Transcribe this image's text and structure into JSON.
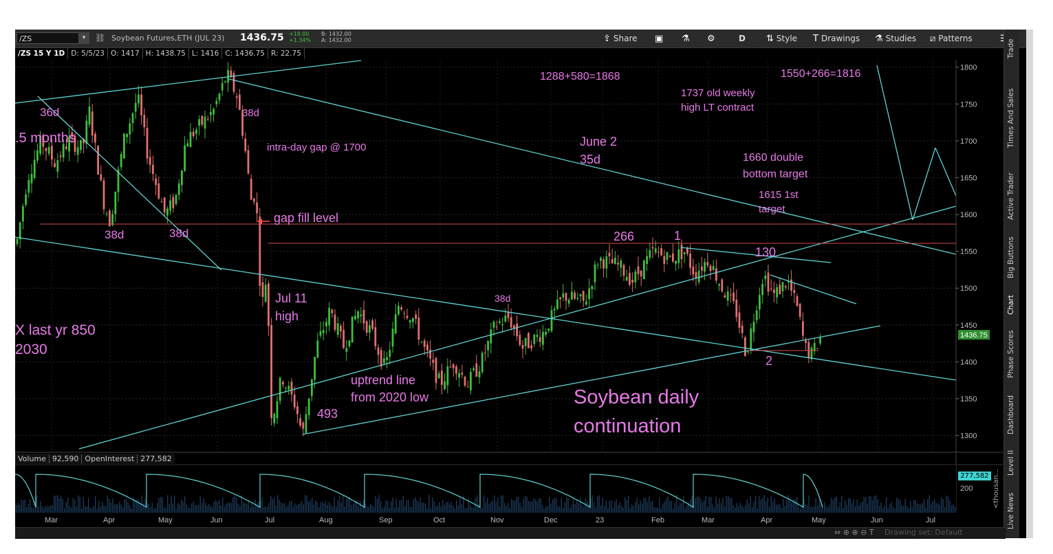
{
  "toolbar": {
    "symbol": "/ZS",
    "description": "Soybean Futures,ETH (JUL 23)",
    "last": "1436.75",
    "change": "+19.00",
    "change_pct": "+1.34%",
    "bid": "B: 1432.00",
    "ask": "A: 1432.00",
    "share": "Share",
    "period": "D",
    "style": "Style",
    "drawings": "Drawings",
    "studies": "Studies",
    "patterns": "Patterns"
  },
  "infobar": {
    "title": "/ZS 15 Y 1D",
    "date": "D: 5/5/23",
    "open": "O: 1417",
    "high": "H: 1438.75",
    "low": "L: 1416",
    "close": "C: 1436.75",
    "range": "R: 22.75"
  },
  "side_tabs": [
    "Trade",
    "Times And Sales",
    "Active Trader",
    "Big Buttons",
    "Chart",
    "Phase Scores",
    "Dashboard",
    "Level II",
    "Live News"
  ],
  "volume_bar": {
    "label": "Volume",
    "value": "92,590",
    "oi_label": "OpenInterest",
    "oi_value": "277,582",
    "oi_tag": "277,582",
    "axis_unit": "<thousan..."
  },
  "bottom": {
    "drawing_set": "Drawing set: Default"
  },
  "colors": {
    "up": "#3fbf3f",
    "down": "#e07070",
    "trendline": "#5fd3d3",
    "annotation": "#e77ae7",
    "hline": "#d94c4c"
  },
  "chart_data": {
    "type": "candlestick",
    "ylim": [
      1280,
      1810
    ],
    "y_ticks": [
      1300,
      1350,
      1400,
      1450,
      1500,
      1550,
      1600,
      1650,
      1700,
      1750,
      1800
    ],
    "x_labels": [
      "Mar",
      "Apr",
      "May",
      "Jun",
      "Jul",
      "Aug",
      "Sep",
      "Oct",
      "Nov",
      "Dec",
      "23",
      "Feb",
      "Mar",
      "Apr",
      "May",
      "Jun",
      "Jul"
    ],
    "last_price_tag": "1436.75",
    "oi_ticks": [
      "200"
    ],
    "annotations": [
      "36d",
      ".5 months",
      "38d",
      "38d",
      "38d",
      "intra-day gap @ 1700",
      "gap fill level",
      "1288+580=1868",
      "1737 old weekly",
      "high LT contract",
      "1550+266=1816",
      "June 2",
      "35d",
      "1660 double",
      "bottom target",
      "1615 1st",
      "target",
      "266",
      "1",
      "130",
      "38d",
      "Jul 11",
      "high",
      "X last yr 850",
      "2030",
      "uptrend line",
      "from 2020 low",
      "493",
      "Soybean daily",
      "continuation",
      "2"
    ],
    "price_path": [
      {
        "x": "Mar",
        "close": 1620
      },
      {
        "x": "Apr",
        "close": 1640
      },
      {
        "x": "May",
        "close": 1620
      },
      {
        "x": "Jun",
        "close": 1740
      },
      {
        "x": "Jul",
        "close": 1470
      },
      {
        "x": "Aug",
        "close": 1400
      },
      {
        "x": "Sep",
        "close": 1440
      },
      {
        "x": "Oct",
        "close": 1380
      },
      {
        "x": "Nov",
        "close": 1440
      },
      {
        "x": "Dec",
        "close": 1470
      },
      {
        "x": "23",
        "close": 1520
      },
      {
        "x": "Feb",
        "close": 1540
      },
      {
        "x": "Mar",
        "close": 1480
      },
      {
        "x": "Apr",
        "close": 1500
      },
      {
        "x": "May",
        "close": 1436.75
      }
    ],
    "horizontal_levels": [
      1580,
      1553
    ]
  }
}
